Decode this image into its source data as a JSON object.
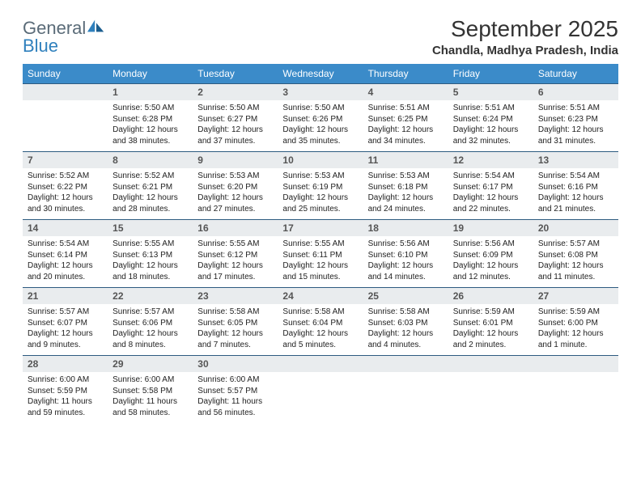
{
  "logo": {
    "word1": "General",
    "word2": "Blue"
  },
  "title": "September 2025",
  "location": "Chandla, Madhya Pradesh, India",
  "colors": {
    "header_bg": "#3b8bc9",
    "header_text": "#ffffff",
    "daynum_bg": "#e9ecee",
    "daynum_border": "#2d5b80",
    "text": "#222222",
    "logo_gray": "#5a6b78",
    "logo_blue": "#2f80bd"
  },
  "weekdays": [
    "Sunday",
    "Monday",
    "Tuesday",
    "Wednesday",
    "Thursday",
    "Friday",
    "Saturday"
  ],
  "weeks": [
    [
      {
        "day": "",
        "sunrise": "",
        "sunset": "",
        "daylight": ""
      },
      {
        "day": "1",
        "sunrise": "Sunrise: 5:50 AM",
        "sunset": "Sunset: 6:28 PM",
        "daylight": "Daylight: 12 hours and 38 minutes."
      },
      {
        "day": "2",
        "sunrise": "Sunrise: 5:50 AM",
        "sunset": "Sunset: 6:27 PM",
        "daylight": "Daylight: 12 hours and 37 minutes."
      },
      {
        "day": "3",
        "sunrise": "Sunrise: 5:50 AM",
        "sunset": "Sunset: 6:26 PM",
        "daylight": "Daylight: 12 hours and 35 minutes."
      },
      {
        "day": "4",
        "sunrise": "Sunrise: 5:51 AM",
        "sunset": "Sunset: 6:25 PM",
        "daylight": "Daylight: 12 hours and 34 minutes."
      },
      {
        "day": "5",
        "sunrise": "Sunrise: 5:51 AM",
        "sunset": "Sunset: 6:24 PM",
        "daylight": "Daylight: 12 hours and 32 minutes."
      },
      {
        "day": "6",
        "sunrise": "Sunrise: 5:51 AM",
        "sunset": "Sunset: 6:23 PM",
        "daylight": "Daylight: 12 hours and 31 minutes."
      }
    ],
    [
      {
        "day": "7",
        "sunrise": "Sunrise: 5:52 AM",
        "sunset": "Sunset: 6:22 PM",
        "daylight": "Daylight: 12 hours and 30 minutes."
      },
      {
        "day": "8",
        "sunrise": "Sunrise: 5:52 AM",
        "sunset": "Sunset: 6:21 PM",
        "daylight": "Daylight: 12 hours and 28 minutes."
      },
      {
        "day": "9",
        "sunrise": "Sunrise: 5:53 AM",
        "sunset": "Sunset: 6:20 PM",
        "daylight": "Daylight: 12 hours and 27 minutes."
      },
      {
        "day": "10",
        "sunrise": "Sunrise: 5:53 AM",
        "sunset": "Sunset: 6:19 PM",
        "daylight": "Daylight: 12 hours and 25 minutes."
      },
      {
        "day": "11",
        "sunrise": "Sunrise: 5:53 AM",
        "sunset": "Sunset: 6:18 PM",
        "daylight": "Daylight: 12 hours and 24 minutes."
      },
      {
        "day": "12",
        "sunrise": "Sunrise: 5:54 AM",
        "sunset": "Sunset: 6:17 PM",
        "daylight": "Daylight: 12 hours and 22 minutes."
      },
      {
        "day": "13",
        "sunrise": "Sunrise: 5:54 AM",
        "sunset": "Sunset: 6:16 PM",
        "daylight": "Daylight: 12 hours and 21 minutes."
      }
    ],
    [
      {
        "day": "14",
        "sunrise": "Sunrise: 5:54 AM",
        "sunset": "Sunset: 6:14 PM",
        "daylight": "Daylight: 12 hours and 20 minutes."
      },
      {
        "day": "15",
        "sunrise": "Sunrise: 5:55 AM",
        "sunset": "Sunset: 6:13 PM",
        "daylight": "Daylight: 12 hours and 18 minutes."
      },
      {
        "day": "16",
        "sunrise": "Sunrise: 5:55 AM",
        "sunset": "Sunset: 6:12 PM",
        "daylight": "Daylight: 12 hours and 17 minutes."
      },
      {
        "day": "17",
        "sunrise": "Sunrise: 5:55 AM",
        "sunset": "Sunset: 6:11 PM",
        "daylight": "Daylight: 12 hours and 15 minutes."
      },
      {
        "day": "18",
        "sunrise": "Sunrise: 5:56 AM",
        "sunset": "Sunset: 6:10 PM",
        "daylight": "Daylight: 12 hours and 14 minutes."
      },
      {
        "day": "19",
        "sunrise": "Sunrise: 5:56 AM",
        "sunset": "Sunset: 6:09 PM",
        "daylight": "Daylight: 12 hours and 12 minutes."
      },
      {
        "day": "20",
        "sunrise": "Sunrise: 5:57 AM",
        "sunset": "Sunset: 6:08 PM",
        "daylight": "Daylight: 12 hours and 11 minutes."
      }
    ],
    [
      {
        "day": "21",
        "sunrise": "Sunrise: 5:57 AM",
        "sunset": "Sunset: 6:07 PM",
        "daylight": "Daylight: 12 hours and 9 minutes."
      },
      {
        "day": "22",
        "sunrise": "Sunrise: 5:57 AM",
        "sunset": "Sunset: 6:06 PM",
        "daylight": "Daylight: 12 hours and 8 minutes."
      },
      {
        "day": "23",
        "sunrise": "Sunrise: 5:58 AM",
        "sunset": "Sunset: 6:05 PM",
        "daylight": "Daylight: 12 hours and 7 minutes."
      },
      {
        "day": "24",
        "sunrise": "Sunrise: 5:58 AM",
        "sunset": "Sunset: 6:04 PM",
        "daylight": "Daylight: 12 hours and 5 minutes."
      },
      {
        "day": "25",
        "sunrise": "Sunrise: 5:58 AM",
        "sunset": "Sunset: 6:03 PM",
        "daylight": "Daylight: 12 hours and 4 minutes."
      },
      {
        "day": "26",
        "sunrise": "Sunrise: 5:59 AM",
        "sunset": "Sunset: 6:01 PM",
        "daylight": "Daylight: 12 hours and 2 minutes."
      },
      {
        "day": "27",
        "sunrise": "Sunrise: 5:59 AM",
        "sunset": "Sunset: 6:00 PM",
        "daylight": "Daylight: 12 hours and 1 minute."
      }
    ],
    [
      {
        "day": "28",
        "sunrise": "Sunrise: 6:00 AM",
        "sunset": "Sunset: 5:59 PM",
        "daylight": "Daylight: 11 hours and 59 minutes."
      },
      {
        "day": "29",
        "sunrise": "Sunrise: 6:00 AM",
        "sunset": "Sunset: 5:58 PM",
        "daylight": "Daylight: 11 hours and 58 minutes."
      },
      {
        "day": "30",
        "sunrise": "Sunrise: 6:00 AM",
        "sunset": "Sunset: 5:57 PM",
        "daylight": "Daylight: 11 hours and 56 minutes."
      },
      {
        "day": "",
        "sunrise": "",
        "sunset": "",
        "daylight": ""
      },
      {
        "day": "",
        "sunrise": "",
        "sunset": "",
        "daylight": ""
      },
      {
        "day": "",
        "sunrise": "",
        "sunset": "",
        "daylight": ""
      },
      {
        "day": "",
        "sunrise": "",
        "sunset": "",
        "daylight": ""
      }
    ]
  ]
}
